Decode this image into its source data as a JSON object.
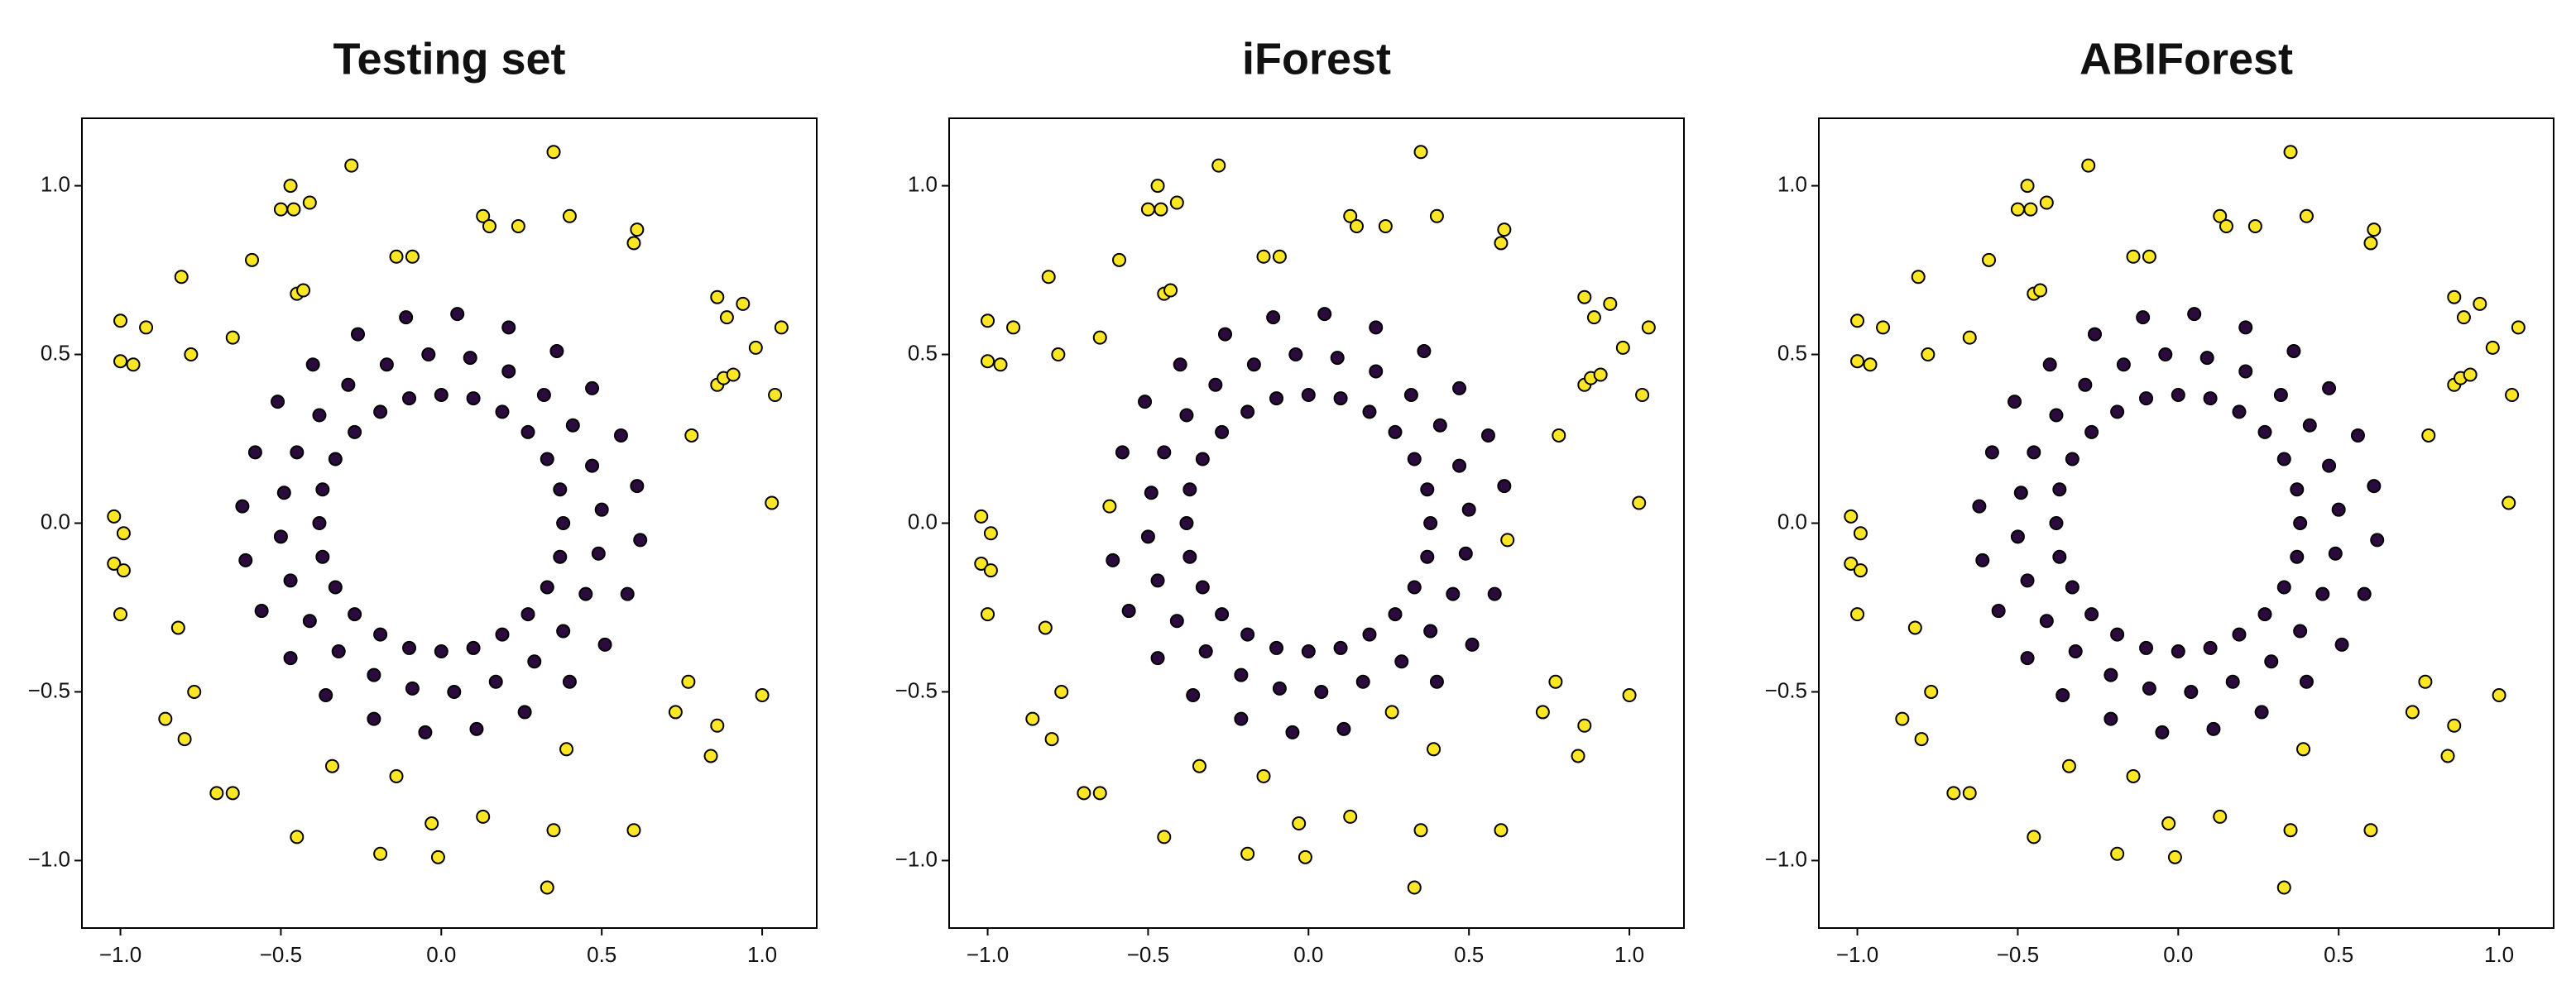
{
  "chart_data": [
    {
      "type": "scatter",
      "title": "Testing set",
      "xlim": [
        -1.12,
        1.17
      ],
      "ylim": [
        -1.2,
        1.2
      ],
      "xticks": [
        {
          "value": -1,
          "label": "−1.0"
        },
        {
          "value": -0.5,
          "label": "−0.5"
        },
        {
          "value": 0,
          "label": "0.0"
        },
        {
          "value": 0.5,
          "label": "0.5"
        },
        {
          "value": 1,
          "label": "1.0"
        }
      ],
      "yticks": [
        {
          "value": -1,
          "label": "−1.0"
        },
        {
          "value": -0.5,
          "label": "−0.5"
        },
        {
          "value": 0,
          "label": "0.0"
        },
        {
          "value": 0.5,
          "label": "0.5"
        },
        {
          "value": 1,
          "label": "1.0"
        }
      ],
      "series": [
        {
          "color": "#2b0a3d",
          "x": [
            0.38,
            0.37,
            0.33,
            0.27,
            0.19,
            0.1,
            0,
            -0.1,
            -0.19,
            -0.27,
            -0.33,
            -0.37,
            -0.38,
            -0.37,
            -0.33,
            -0.27,
            -0.19,
            -0.1,
            0,
            0.1,
            0.19,
            0.27,
            0.33,
            0.37,
            0.5,
            0.47,
            0.41,
            0.32,
            0.21,
            0.09,
            -0.04,
            -0.17,
            -0.29,
            -0.38,
            -0.45,
            -0.49,
            -0.5,
            -0.47,
            -0.41,
            -0.32,
            -0.21,
            -0.09,
            0.04,
            0.17,
            0.29,
            0.38,
            0.45,
            0.49,
            0.61,
            0.56,
            0.47,
            0.36,
            0.21,
            0.05,
            -0.11,
            -0.26,
            -0.4,
            -0.51,
            -0.58,
            -0.62,
            -0.61,
            -0.56,
            -0.47,
            -0.36,
            -0.21,
            -0.05,
            0.11,
            0.26,
            0.4,
            0.51,
            0.58,
            0.62
          ],
          "values": [
            0,
            0.1,
            0.19,
            0.27,
            0.33,
            0.37,
            0.38,
            0.37,
            0.33,
            0.27,
            0.19,
            0.1,
            0,
            -0.1,
            -0.19,
            -0.27,
            -0.33,
            -0.37,
            -0.38,
            -0.37,
            -0.33,
            -0.27,
            -0.19,
            -0.1,
            0.04,
            0.17,
            0.29,
            0.38,
            0.45,
            0.49,
            0.5,
            0.47,
            0.41,
            0.32,
            0.21,
            0.09,
            -0.04,
            -0.17,
            -0.29,
            -0.38,
            -0.45,
            -0.49,
            -0.5,
            -0.47,
            -0.41,
            -0.32,
            -0.21,
            -0.09,
            0.11,
            0.26,
            0.4,
            0.51,
            0.58,
            0.62,
            0.61,
            0.56,
            0.47,
            0.36,
            0.21,
            0.05,
            -0.11,
            -0.26,
            -0.4,
            -0.51,
            -0.58,
            -0.62,
            -0.61,
            -0.56,
            -0.47,
            -0.36,
            -0.21,
            -0.05
          ]
        },
        {
          "color": "#fde725",
          "x": [
            -0.28,
            0.35,
            -0.47,
            -0.5,
            -0.46,
            -0.41,
            0.13,
            0.15,
            0.24,
            0.4,
            -0.14,
            -0.09,
            0.61,
            0.6,
            -0.59,
            -0.81,
            -0.45,
            -0.43,
            -1,
            -0.92,
            -0.65,
            -0.78,
            -1,
            -0.96,
            0.86,
            0.89,
            0.94,
            0.98,
            1.06,
            0.86,
            0.88,
            0.91,
            1.04,
            0.78,
            1.03,
            -1.02,
            -0.99,
            -1.02,
            -0.99,
            -1,
            -0.82,
            -0.77,
            -0.86,
            -0.8,
            0.77,
            0.73,
            0.86,
            0.84,
            1,
            0.39,
            -0.34,
            -0.14,
            -0.7,
            -0.65,
            -0.03,
            0.13,
            0.35,
            0.6,
            -0.45,
            -0.19,
            -0.01,
            0.33
          ],
          "values": [
            1.06,
            1.1,
            1,
            0.93,
            0.93,
            0.95,
            0.91,
            0.88,
            0.88,
            0.91,
            0.79,
            0.79,
            0.87,
            0.83,
            0.78,
            0.73,
            0.68,
            0.69,
            0.6,
            0.58,
            0.55,
            0.5,
            0.48,
            0.47,
            0.67,
            0.61,
            0.65,
            0.52,
            0.58,
            0.41,
            0.43,
            0.44,
            0.38,
            0.26,
            0.06,
            0.02,
            -0.03,
            -0.12,
            -0.14,
            -0.27,
            -0.31,
            -0.5,
            -0.58,
            -0.64,
            -0.47,
            -0.56,
            -0.6,
            -0.69,
            -0.51,
            -0.67,
            -0.72,
            -0.75,
            -0.8,
            -0.8,
            -0.89,
            -0.87,
            -0.91,
            -0.91,
            -0.93,
            -0.98,
            -0.99,
            -1.08
          ]
        }
      ]
    },
    {
      "type": "scatter",
      "title": "iForest",
      "xlim": [
        -1.12,
        1.17
      ],
      "ylim": [
        -1.2,
        1.2
      ],
      "xticks": [
        {
          "value": -1,
          "label": "−1.0"
        },
        {
          "value": -0.5,
          "label": "−0.5"
        },
        {
          "value": 0,
          "label": "0.0"
        },
        {
          "value": 0.5,
          "label": "0.5"
        },
        {
          "value": 1,
          "label": "1.0"
        }
      ],
      "yticks": [
        {
          "value": -1,
          "label": "−1.0"
        },
        {
          "value": -0.5,
          "label": "−0.5"
        },
        {
          "value": 0,
          "label": "0.0"
        },
        {
          "value": 0.5,
          "label": "0.5"
        },
        {
          "value": 1,
          "label": "1.0"
        }
      ],
      "series": [
        {
          "color": "#2b0a3d",
          "x": [
            0.38,
            0.37,
            0.33,
            0.27,
            0.19,
            0.1,
            0,
            -0.1,
            -0.19,
            -0.27,
            -0.33,
            -0.37,
            -0.38,
            -0.37,
            -0.33,
            -0.27,
            -0.19,
            -0.1,
            0,
            0.1,
            0.19,
            0.27,
            0.33,
            0.37,
            0.5,
            0.47,
            0.41,
            0.32,
            0.21,
            0.09,
            -0.04,
            -0.17,
            -0.29,
            -0.38,
            -0.45,
            -0.49,
            -0.5,
            -0.47,
            -0.41,
            -0.32,
            -0.21,
            -0.09,
            0.04,
            0.17,
            0.29,
            0.38,
            0.45,
            0.49,
            0.61,
            0.56,
            0.47,
            0.36,
            0.21,
            0.05,
            -0.11,
            -0.26,
            -0.4,
            -0.51,
            -0.58,
            -0.61,
            -0.56,
            -0.47,
            -0.36,
            -0.21,
            -0.05,
            0.11,
            0.4,
            0.51,
            0.58
          ],
          "values": [
            0,
            0.1,
            0.19,
            0.27,
            0.33,
            0.37,
            0.38,
            0.37,
            0.33,
            0.27,
            0.19,
            0.1,
            0,
            -0.1,
            -0.19,
            -0.27,
            -0.33,
            -0.37,
            -0.38,
            -0.37,
            -0.33,
            -0.27,
            -0.19,
            -0.1,
            0.04,
            0.17,
            0.29,
            0.38,
            0.45,
            0.49,
            0.5,
            0.47,
            0.41,
            0.32,
            0.21,
            0.09,
            -0.04,
            -0.17,
            -0.29,
            -0.38,
            -0.45,
            -0.49,
            -0.5,
            -0.47,
            -0.41,
            -0.32,
            -0.21,
            -0.09,
            0.11,
            0.26,
            0.4,
            0.51,
            0.58,
            0.62,
            0.61,
            0.56,
            0.47,
            0.36,
            0.21,
            -0.11,
            -0.26,
            -0.4,
            -0.51,
            -0.58,
            -0.62,
            -0.61,
            -0.47,
            -0.36,
            -0.21
          ]
        },
        {
          "color": "#fde725",
          "x": [
            -0.28,
            0.35,
            -0.47,
            -0.5,
            -0.46,
            -0.41,
            0.13,
            0.15,
            0.24,
            0.4,
            -0.14,
            -0.09,
            0.61,
            0.6,
            -0.59,
            -0.81,
            -0.45,
            -0.43,
            -1,
            -0.92,
            -0.65,
            -0.78,
            -1,
            -0.96,
            0.86,
            0.89,
            0.94,
            0.98,
            1.06,
            0.86,
            0.88,
            0.91,
            1.04,
            0.78,
            1.03,
            -1.02,
            -0.99,
            -1.02,
            -0.99,
            -1,
            -0.82,
            -0.77,
            -0.86,
            -0.8,
            0.77,
            0.73,
            0.86,
            0.84,
            1,
            0.39,
            -0.34,
            -0.14,
            -0.7,
            -0.65,
            -0.03,
            0.13,
            0.35,
            0.6,
            -0.45,
            -0.19,
            -0.01,
            0.33,
            -0.62,
            0.26,
            0.62
          ],
          "values": [
            1.06,
            1.1,
            1,
            0.93,
            0.93,
            0.95,
            0.91,
            0.88,
            0.88,
            0.91,
            0.79,
            0.79,
            0.87,
            0.83,
            0.78,
            0.73,
            0.68,
            0.69,
            0.6,
            0.58,
            0.55,
            0.5,
            0.48,
            0.47,
            0.67,
            0.61,
            0.65,
            0.52,
            0.58,
            0.41,
            0.43,
            0.44,
            0.38,
            0.26,
            0.06,
            0.02,
            -0.03,
            -0.12,
            -0.14,
            -0.27,
            -0.31,
            -0.5,
            -0.58,
            -0.64,
            -0.47,
            -0.56,
            -0.6,
            -0.69,
            -0.51,
            -0.67,
            -0.72,
            -0.75,
            -0.8,
            -0.8,
            -0.89,
            -0.87,
            -0.91,
            -0.91,
            -0.93,
            -0.98,
            -0.99,
            -1.08,
            0.05,
            -0.56,
            -0.05
          ]
        }
      ]
    },
    {
      "type": "scatter",
      "title": "ABIForest",
      "xlim": [
        -1.12,
        1.17
      ],
      "ylim": [
        -1.2,
        1.2
      ],
      "xticks": [
        {
          "value": -1,
          "label": "−1.0"
        },
        {
          "value": -0.5,
          "label": "−0.5"
        },
        {
          "value": 0,
          "label": "0.0"
        },
        {
          "value": 0.5,
          "label": "0.5"
        },
        {
          "value": 1,
          "label": "1.0"
        }
      ],
      "yticks": [
        {
          "value": -1,
          "label": "−1.0"
        },
        {
          "value": -0.5,
          "label": "−0.5"
        },
        {
          "value": 0,
          "label": "0.0"
        },
        {
          "value": 0.5,
          "label": "0.5"
        },
        {
          "value": 1,
          "label": "1.0"
        }
      ],
      "series": [
        {
          "color": "#2b0a3d",
          "x": [
            0.38,
            0.37,
            0.33,
            0.27,
            0.19,
            0.1,
            0,
            -0.1,
            -0.19,
            -0.27,
            -0.33,
            -0.37,
            -0.38,
            -0.37,
            -0.33,
            -0.27,
            -0.19,
            -0.1,
            0,
            0.1,
            0.19,
            0.27,
            0.33,
            0.37,
            0.5,
            0.47,
            0.41,
            0.32,
            0.21,
            0.09,
            -0.04,
            -0.17,
            -0.29,
            -0.38,
            -0.45,
            -0.49,
            -0.5,
            -0.47,
            -0.41,
            -0.32,
            -0.21,
            -0.09,
            0.04,
            0.17,
            0.29,
            0.38,
            0.45,
            0.49,
            0.61,
            0.56,
            0.47,
            0.36,
            0.21,
            0.05,
            -0.11,
            -0.26,
            -0.4,
            -0.51,
            -0.58,
            -0.62,
            -0.61,
            -0.56,
            -0.47,
            -0.36,
            -0.21,
            -0.05,
            0.11,
            0.26,
            0.4,
            0.51,
            0.58,
            0.62
          ],
          "values": [
            0,
            0.1,
            0.19,
            0.27,
            0.33,
            0.37,
            0.38,
            0.37,
            0.33,
            0.27,
            0.19,
            0.1,
            0,
            -0.1,
            -0.19,
            -0.27,
            -0.33,
            -0.37,
            -0.38,
            -0.37,
            -0.33,
            -0.27,
            -0.19,
            -0.1,
            0.04,
            0.17,
            0.29,
            0.38,
            0.45,
            0.49,
            0.5,
            0.47,
            0.41,
            0.32,
            0.21,
            0.09,
            -0.04,
            -0.17,
            -0.29,
            -0.38,
            -0.45,
            -0.49,
            -0.5,
            -0.47,
            -0.41,
            -0.32,
            -0.21,
            -0.09,
            0.11,
            0.26,
            0.4,
            0.51,
            0.58,
            0.62,
            0.61,
            0.56,
            0.47,
            0.36,
            0.21,
            0.05,
            -0.11,
            -0.26,
            -0.4,
            -0.51,
            -0.58,
            -0.62,
            -0.61,
            -0.56,
            -0.47,
            -0.36,
            -0.21,
            -0.05
          ]
        },
        {
          "color": "#fde725",
          "x": [
            -0.28,
            0.35,
            -0.47,
            -0.5,
            -0.46,
            -0.41,
            0.13,
            0.15,
            0.24,
            0.4,
            -0.14,
            -0.09,
            0.61,
            0.6,
            -0.59,
            -0.81,
            -0.45,
            -0.43,
            -1,
            -0.92,
            -0.65,
            -0.78,
            -1,
            -0.96,
            0.86,
            0.89,
            0.94,
            0.98,
            1.06,
            0.86,
            0.88,
            0.91,
            1.04,
            0.78,
            1.03,
            -1.02,
            -0.99,
            -1.02,
            -0.99,
            -1,
            -0.82,
            -0.77,
            -0.86,
            -0.8,
            0.77,
            0.73,
            0.86,
            0.84,
            1,
            0.39,
            -0.34,
            -0.14,
            -0.7,
            -0.65,
            -0.03,
            0.13,
            0.35,
            0.6,
            -0.45,
            -0.19,
            -0.01,
            0.33
          ],
          "values": [
            1.06,
            1.1,
            1,
            0.93,
            0.93,
            0.95,
            0.91,
            0.88,
            0.88,
            0.91,
            0.79,
            0.79,
            0.87,
            0.83,
            0.78,
            0.73,
            0.68,
            0.69,
            0.6,
            0.58,
            0.55,
            0.5,
            0.48,
            0.47,
            0.67,
            0.61,
            0.65,
            0.52,
            0.58,
            0.41,
            0.43,
            0.44,
            0.38,
            0.26,
            0.06,
            0.02,
            -0.03,
            -0.12,
            -0.14,
            -0.27,
            -0.31,
            -0.5,
            -0.58,
            -0.64,
            -0.47,
            -0.56,
            -0.6,
            -0.69,
            -0.51,
            -0.67,
            -0.72,
            -0.75,
            -0.8,
            -0.8,
            -0.89,
            -0.87,
            -0.91,
            -0.91,
            -0.93,
            -0.98,
            -0.99,
            -1.08
          ]
        }
      ]
    }
  ]
}
